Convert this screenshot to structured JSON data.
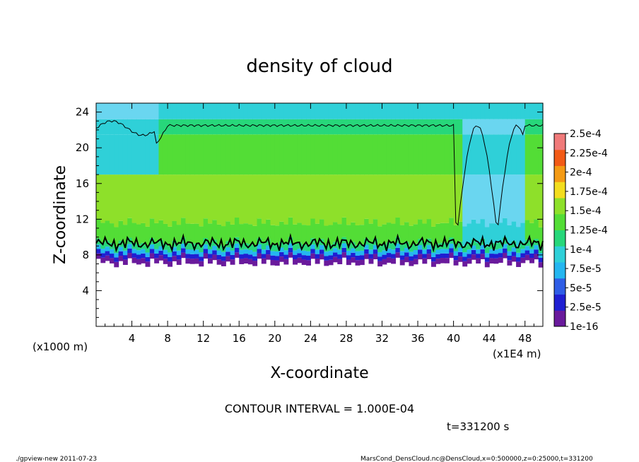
{
  "chart_data": {
    "type": "heatmap",
    "title": "density of cloud",
    "xlabel": "X-coordinate",
    "ylabel": "Z-coordinate",
    "x_unit_left": "(x1000 m)",
    "x_unit_right": "(x1E4 m)",
    "xlim": [
      0,
      50
    ],
    "ylim": [
      0,
      25
    ],
    "x_ticks": [
      "4",
      "8",
      "12",
      "16",
      "20",
      "24",
      "28",
      "32",
      "36",
      "40",
      "44",
      "48"
    ],
    "y_ticks": [
      "4",
      "8",
      "12",
      "16",
      "20",
      "24"
    ],
    "colorbar_labels": [
      "1e-16",
      "2.5e-5",
      "5e-5",
      "7.5e-5",
      "1e-4",
      "1.25e-4",
      "1.5e-4",
      "1.75e-4",
      "2e-4",
      "2.25e-4",
      "2.5e-4"
    ],
    "colorbar_colors": [
      "#6a1a9c",
      "#1f1fd2",
      "#2f5de6",
      "#25b6f0",
      "#2fd0d8",
      "#27d77a",
      "#53dd36",
      "#8ee02a",
      "#f3dd1e",
      "#f49a14",
      "#f25a16",
      "#f07a7a"
    ],
    "contour_interval": "CONTOUR INTERVAL = 1.000E-04",
    "time": "t=331200 s",
    "cloud_base_z": 7.5,
    "cloud_top_z": 22.5,
    "max_density": 0.00015
  },
  "footer": {
    "left": "./gpview-new  2011-07-23",
    "right": "MarsCond_DensCloud.nc@DensCloud,x=0:500000,z=0:25000,t=331200"
  }
}
